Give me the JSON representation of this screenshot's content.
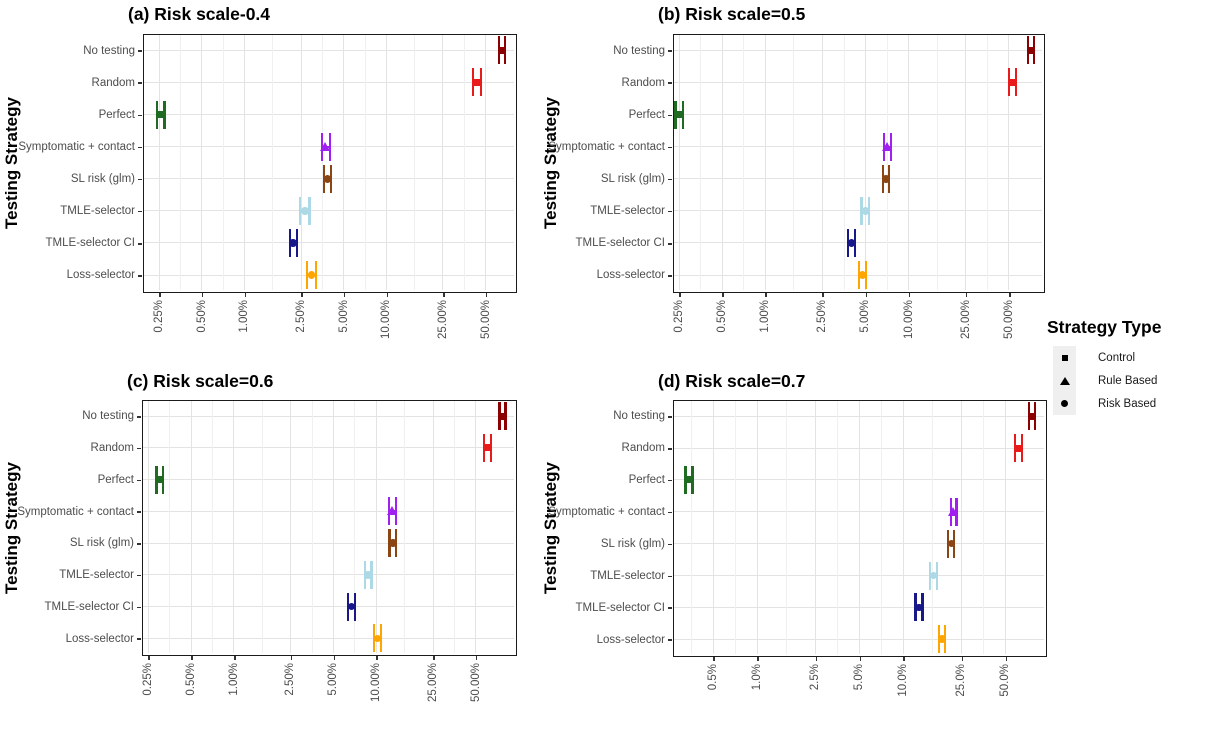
{
  "figure": {
    "y_axis_title": "Testing Strategy",
    "categories": [
      "No testing",
      "Random",
      "Perfect",
      "Symptomatic + contact",
      "SL risk (glm)",
      "TMLE-selector",
      "TMLE-selector CI",
      "Loss-selector"
    ],
    "legend": {
      "title": "Strategy Type",
      "items": [
        {
          "label": "Control",
          "marker": "square"
        },
        {
          "label": "Rule Based",
          "marker": "triangle"
        },
        {
          "label": "Risk Based",
          "marker": "circle"
        }
      ]
    },
    "colors": {
      "No testing": "#8B0000",
      "Random": "#E81A1A",
      "Perfect": "#1E6B21",
      "Symptomatic + contact": "#A020F0",
      "SL risk (glm)": "#8B4513",
      "TMLE-selector": "#ADD8E6",
      "TMLE-selector CI": "#18188B",
      "Loss-selector": "#FFA500"
    }
  },
  "chart_data": {
    "type": "scatter",
    "subtype": "dot-and-horizontal-error-bar, log10 x axis, percent infected by testing strategy",
    "x_scale": "log",
    "grid": "major and minor vertical, major horizontal",
    "legend_position": "right",
    "panels": [
      {
        "title": "(a) Risk scale-0.4",
        "x_range": [
          0.19,
          82
        ],
        "x_ticks": [
          0.25,
          0.5,
          1,
          2.5,
          5,
          10,
          25,
          50
        ],
        "x_tick_labels": [
          "0.25%",
          "0.50%",
          "1.00%",
          "2.50%",
          "5.00%",
          "10.00%",
          "25.00%",
          "50.00%"
        ],
        "points": [
          {
            "strategy": "No testing",
            "marker": "square",
            "value": 65.0,
            "lo": 62.0,
            "hi": 68.5
          },
          {
            "strategy": "Random",
            "marker": "square",
            "value": 43.3,
            "lo": 40.6,
            "hi": 46.2
          },
          {
            "strategy": "Perfect",
            "marker": "square",
            "value": 0.257,
            "lo": 0.242,
            "hi": 0.273
          },
          {
            "strategy": "Symptomatic + contact",
            "marker": "triangle",
            "value": 3.74,
            "lo": 3.49,
            "hi": 4.0
          },
          {
            "strategy": "SL risk (glm)",
            "marker": "circle",
            "value": 3.83,
            "lo": 3.62,
            "hi": 4.05
          },
          {
            "strategy": "TMLE-selector",
            "marker": "circle",
            "value": 2.66,
            "lo": 2.47,
            "hi": 2.87
          },
          {
            "strategy": "TMLE-selector CI",
            "marker": "circle",
            "value": 2.2,
            "lo": 2.08,
            "hi": 2.33
          },
          {
            "strategy": "Loss-selector",
            "marker": "circle",
            "value": 2.95,
            "lo": 2.74,
            "hi": 3.18
          }
        ]
      },
      {
        "title": "(b) Risk scale=0.5",
        "x_range": [
          0.224,
          88
        ],
        "x_ticks": [
          0.25,
          0.5,
          1,
          2.5,
          5,
          10,
          25,
          50
        ],
        "x_tick_labels": [
          "0.25%",
          "0.50%",
          "1.00%",
          "2.50%",
          "5.00%",
          "10.00%",
          "25.00%",
          "50.00%"
        ],
        "points": [
          {
            "strategy": "No testing",
            "marker": "square",
            "value": 71.5,
            "lo": 68.0,
            "hi": 75.2
          },
          {
            "strategy": "Random",
            "marker": "square",
            "value": 52.7,
            "lo": 49.7,
            "hi": 55.9
          },
          {
            "strategy": "Perfect",
            "marker": "square",
            "value": 0.25,
            "lo": 0.236,
            "hi": 0.265
          },
          {
            "strategy": "Symptomatic + contact",
            "marker": "triangle",
            "value": 7.1,
            "lo": 6.7,
            "hi": 7.52
          },
          {
            "strategy": "SL risk (glm)",
            "marker": "circle",
            "value": 6.95,
            "lo": 6.6,
            "hi": 7.32
          },
          {
            "strategy": "TMLE-selector",
            "marker": "circle",
            "value": 4.98,
            "lo": 4.68,
            "hi": 5.3
          },
          {
            "strategy": "TMLE-selector CI",
            "marker": "circle",
            "value": 3.98,
            "lo": 3.77,
            "hi": 4.2
          },
          {
            "strategy": "Loss-selector",
            "marker": "circle",
            "value": 4.75,
            "lo": 4.5,
            "hi": 5.01
          }
        ]
      },
      {
        "title": "(c) Risk scale=0.6",
        "x_range": [
          0.223,
          96
        ],
        "x_ticks": [
          0.25,
          0.5,
          1,
          2.5,
          5,
          10,
          25,
          50
        ],
        "x_tick_labels": [
          "0.25%",
          "0.50%",
          "1.00%",
          "2.50%",
          "5.00%",
          "10.00%",
          "25.00%",
          "50.00%"
        ],
        "points": [
          {
            "strategy": "No testing",
            "marker": "square",
            "value": 76.9,
            "lo": 73.2,
            "hi": 80.8
          },
          {
            "strategy": "Random",
            "marker": "square",
            "value": 60.3,
            "lo": 57.1,
            "hi": 63.7
          },
          {
            "strategy": "Perfect",
            "marker": "square",
            "value": 0.302,
            "lo": 0.286,
            "hi": 0.319
          },
          {
            "strategy": "Symptomatic + contact",
            "marker": "triangle",
            "value": 12.96,
            "lo": 12.3,
            "hi": 13.66
          },
          {
            "strategy": "SL risk (glm)",
            "marker": "circle",
            "value": 13.04,
            "lo": 12.36,
            "hi": 13.76
          },
          {
            "strategy": "TMLE-selector",
            "marker": "circle",
            "value": 8.75,
            "lo": 8.27,
            "hi": 9.26
          },
          {
            "strategy": "TMLE-selector CI",
            "marker": "circle",
            "value": 6.68,
            "lo": 6.32,
            "hi": 7.06
          },
          {
            "strategy": "Loss-selector",
            "marker": "circle",
            "value": 10.17,
            "lo": 9.63,
            "hi": 10.74
          }
        ]
      },
      {
        "title": "(d) Risk scale=0.7",
        "x_range": [
          0.261,
          95
        ],
        "x_ticks": [
          0.5,
          1,
          2.5,
          5,
          10,
          25,
          50
        ],
        "x_tick_labels": [
          "0.5%",
          "1.0%",
          "2.5%",
          "5.0%",
          "10.0%",
          "25.0%",
          "50.0%"
        ],
        "points": [
          {
            "strategy": "No testing",
            "marker": "square",
            "value": 76.0,
            "lo": 72.8,
            "hi": 79.3
          },
          {
            "strategy": "Random",
            "marker": "square",
            "value": 61.5,
            "lo": 58.3,
            "hi": 64.9
          },
          {
            "strategy": "Perfect",
            "marker": "square",
            "value": 0.34,
            "lo": 0.322,
            "hi": 0.359
          },
          {
            "strategy": "Symptomatic + contact",
            "marker": "triangle",
            "value": 22.05,
            "lo": 21.1,
            "hi": 23.1
          },
          {
            "strategy": "SL risk (glm)",
            "marker": "circle",
            "value": 21.3,
            "lo": 20.3,
            "hi": 22.3
          },
          {
            "strategy": "TMLE-selector",
            "marker": "circle",
            "value": 16.1,
            "lo": 15.3,
            "hi": 16.9
          },
          {
            "strategy": "TMLE-selector CI",
            "marker": "circle",
            "value": 12.8,
            "lo": 12.1,
            "hi": 13.5
          },
          {
            "strategy": "Loss-selector",
            "marker": "circle",
            "value": 18.4,
            "lo": 17.5,
            "hi": 19.3
          }
        ]
      }
    ]
  }
}
